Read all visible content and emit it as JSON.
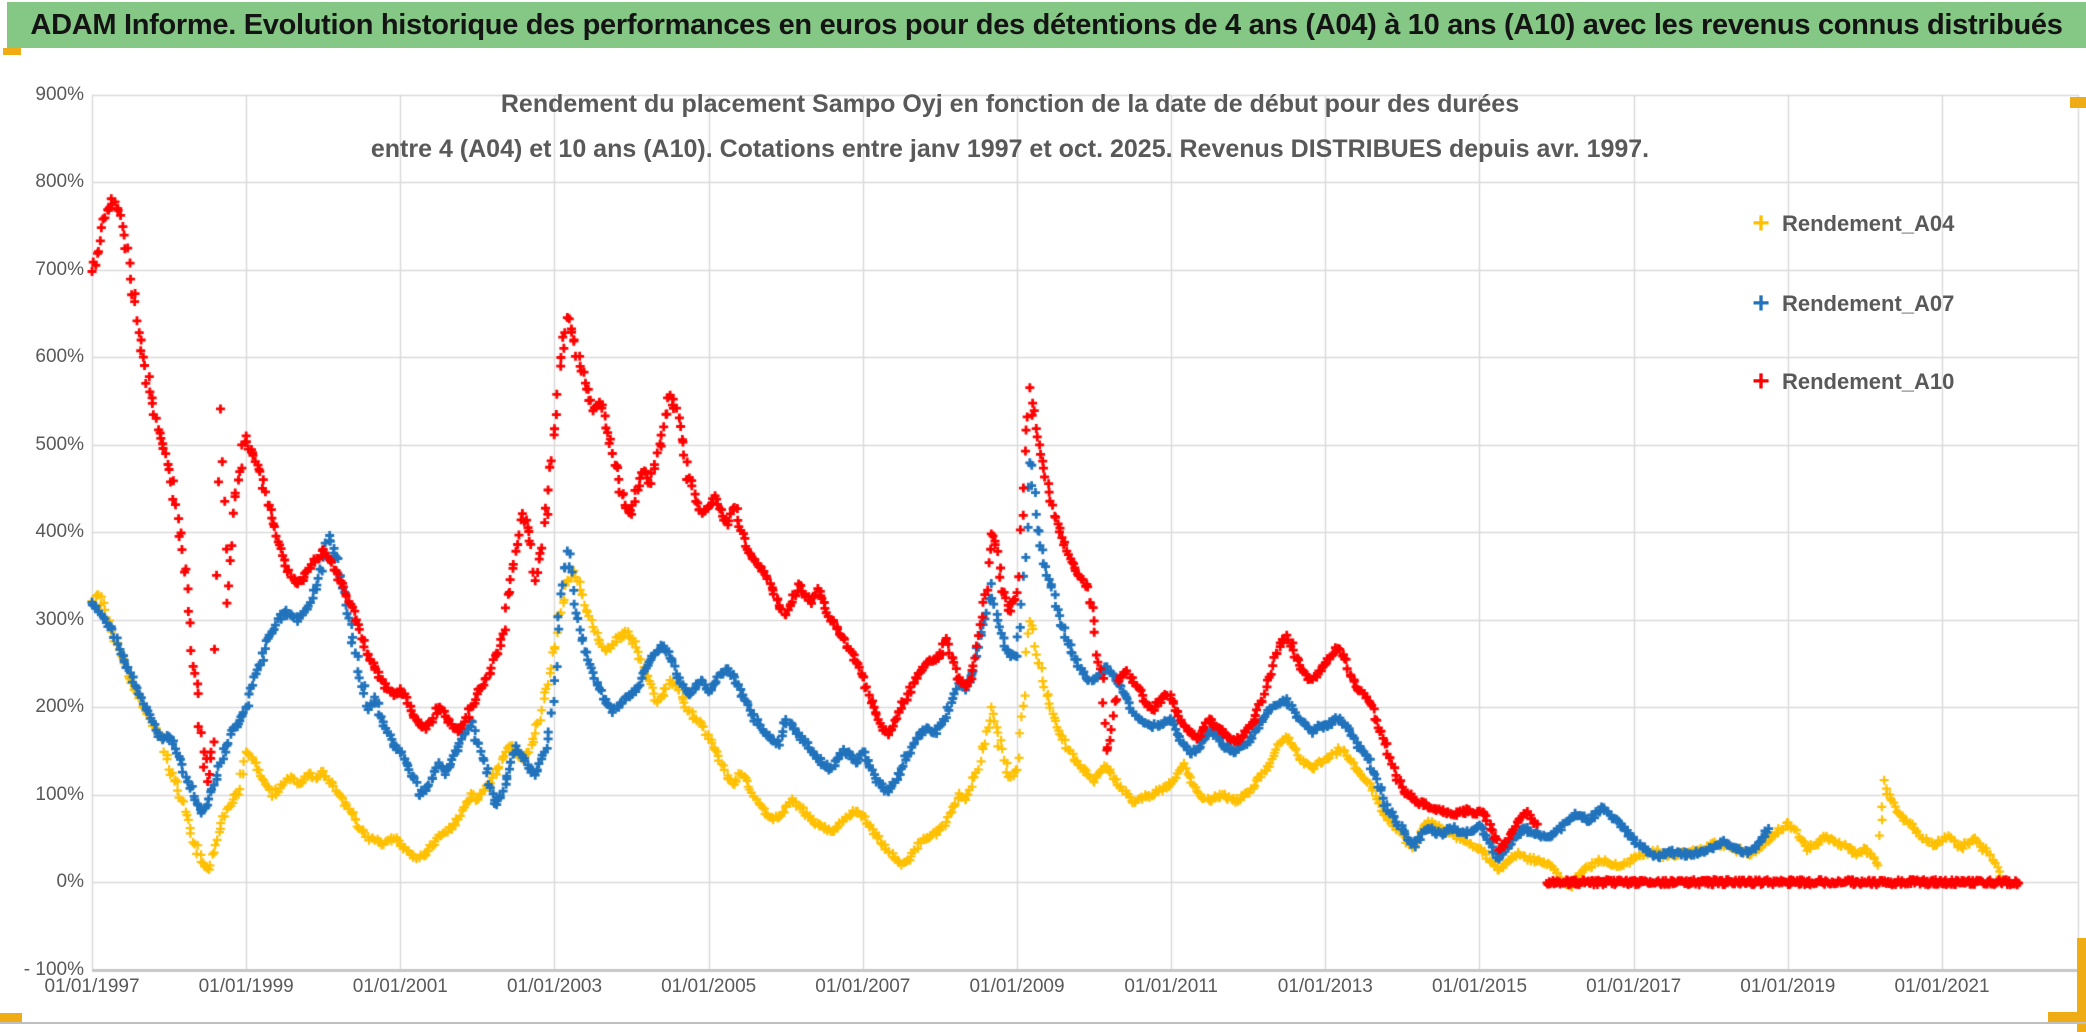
{
  "banner": {
    "text": "ADAM Informe. Evolution historique des performances en euros pour des détentions de 4 ans (A04) à 10 ans (A10) avec les revenus connus distribués"
  },
  "chart": {
    "title_line1": "Rendement du placement Sampo Oyj en fonction de la date de début pour des durées",
    "title_line2": "entre 4 (A04) et 10 ans (A10). Cotations entre janv 1997 et oct. 2025. Revenus DISTRIBUES depuis avr. 1997.",
    "colors": {
      "banner_green": "#85C785",
      "gold_accent": "#EFAC15",
      "text_gray": "#595959",
      "gridline": "#D9D9D9",
      "series_a04": "#FFC000",
      "series_a07": "#2173BC",
      "series_a10": "#FE0000"
    }
  },
  "legend": [
    {
      "label": "Rendement_A04",
      "color": "#FFC000"
    },
    {
      "label": "Rendement_A07",
      "color": "#2173BC"
    },
    {
      "label": "Rendement_A10",
      "color": "#FE0000"
    }
  ],
  "axes": {
    "y": {
      "min": -100,
      "max": 900,
      "step": 100,
      "tick_labels": [
        "900%",
        "800%",
        "700%",
        "600%",
        "500%",
        "400%",
        "300%",
        "200%",
        "100%",
        "0%",
        "- 100%"
      ],
      "tick_values": [
        900,
        800,
        700,
        600,
        500,
        400,
        300,
        200,
        100,
        0,
        -100
      ]
    },
    "x": {
      "tick_years": [
        1997,
        1999,
        2001,
        2003,
        2005,
        2007,
        2009,
        2011,
        2013,
        2015,
        2017,
        2019,
        2021
      ],
      "tick_labels": [
        "01/01/1997",
        "01/01/1999",
        "01/01/2001",
        "01/01/2003",
        "01/01/2005",
        "01/01/2007",
        "01/01/2009",
        "01/01/2011",
        "01/01/2013",
        "01/01/2015",
        "01/01/2017",
        "01/01/2019",
        "01/01/2021"
      ]
    }
  },
  "chart_data": {
    "type": "scatter",
    "marker": "plus",
    "x_unit": "date de début (année décimale, pas mensuel)",
    "y_unit": "rendement en %",
    "x_range": [
      1997.0,
      2022.8
    ],
    "y_range": [
      -100,
      900
    ],
    "grid": true,
    "legend_position": "right",
    "series": [
      {
        "name": "Rendement_A04",
        "color": "#FFC000",
        "start_year": 1997.0,
        "step_years": 0.083333,
        "values": [
          320,
          330,
          310,
          290,
          270,
          250,
          230,
          215,
          200,
          185,
          175,
          165,
          130,
          115,
          95,
          70,
          45,
          25,
          14,
          35,
          60,
          85,
          95,
          105,
          150,
          140,
          128,
          112,
          100,
          105,
          115,
          120,
          114,
          118,
          124,
          120,
          125,
          115,
          105,
          95,
          85,
          72,
          60,
          52,
          48,
          45,
          47,
          50,
          45,
          36,
          30,
          28,
          33,
          42,
          52,
          58,
          62,
          72,
          86,
          100,
          95,
          105,
          115,
          128,
          142,
          155,
          150,
          140,
          150,
          170,
          195,
          225,
          265,
          310,
          345,
          355,
          335,
          310,
          290,
          275,
          265,
          270,
          280,
          285,
          280,
          265,
          245,
          225,
          205,
          215,
          230,
          225,
          210,
          195,
          185,
          178,
          165,
          150,
          135,
          120,
          110,
          125,
          115,
          100,
          88,
          78,
          72,
          75,
          85,
          95,
          88,
          78,
          72,
          66,
          62,
          58,
          62,
          70,
          78,
          80,
          75,
          65,
          55,
          45,
          35,
          27,
          20,
          24,
          35,
          45,
          50,
          55,
          60,
          70,
          85,
          100,
          95,
          110,
          130,
          160,
          200,
          170,
          140,
          120,
          130,
          200,
          300,
          260,
          230,
          205,
          185,
          168,
          152,
          140,
          130,
          124,
          115,
          125,
          132,
          120,
          110,
          100,
          92,
          95,
          98,
          100,
          105,
          110,
          112,
          125,
          135,
          120,
          105,
          96,
          92,
          98,
          102,
          96,
          92,
          98,
          102,
          112,
          122,
          132,
          145,
          158,
          165,
          155,
          142,
          135,
          130,
          138,
          140,
          146,
          152,
          148,
          138,
          128,
          120,
          112,
          95,
          80,
          70,
          62,
          55,
          45,
          40,
          58,
          68,
          65,
          60,
          58,
          55,
          50,
          45,
          42,
          40,
          32,
          22,
          15,
          20,
          28,
          32,
          30,
          26,
          24,
          22,
          20,
          12,
          2,
          -5,
          5,
          12,
          18,
          22,
          25,
          22,
          20,
          18,
          22,
          26,
          30,
          34,
          36,
          33,
          30,
          32,
          34,
          32,
          34,
          36,
          38,
          42,
          45,
          43,
          40,
          38,
          35,
          32,
          36,
          42,
          48,
          55,
          60,
          68,
          60,
          48,
          38,
          42,
          48,
          52,
          48,
          44,
          40,
          35,
          32,
          38,
          30,
          20,
          115,
          95,
          82,
          72,
          66,
          58,
          50,
          45,
          42,
          48,
          52,
          46,
          40,
          44,
          50,
          42,
          34,
          25,
          8
        ]
      },
      {
        "name": "Rendement_A07",
        "color": "#2173BC",
        "start_year": 1997.0,
        "step_years": 0.083333,
        "values": [
          320,
          310,
          300,
          290,
          272,
          255,
          238,
          222,
          205,
          190,
          175,
          162,
          168,
          152,
          135,
          115,
          95,
          78,
          88,
          112,
          138,
          158,
          175,
          186,
          200,
          225,
          248,
          268,
          285,
          300,
          310,
          305,
          300,
          310,
          320,
          340,
          370,
          395,
          372,
          335,
          300,
          262,
          225,
          196,
          210,
          190,
          172,
          156,
          150,
          136,
          120,
          100,
          105,
          120,
          135,
          125,
          140,
          155,
          170,
          185,
          160,
          140,
          110,
          88,
          105,
          130,
          155,
          145,
          132,
          124,
          140,
          165,
          230,
          330,
          380,
          335,
          290,
          262,
          240,
          220,
          205,
          195,
          200,
          210,
          215,
          225,
          240,
          255,
          262,
          270,
          258,
          240,
          225,
          215,
          222,
          230,
          218,
          228,
          238,
          244,
          234,
          220,
          205,
          190,
          178,
          168,
          162,
          158,
          185,
          180,
          170,
          160,
          150,
          140,
          134,
          130,
          140,
          150,
          145,
          135,
          150,
          135,
          120,
          108,
          105,
          115,
          130,
          145,
          160,
          170,
          175,
          170,
          180,
          190,
          210,
          230,
          220,
          240,
          270,
          300,
          340,
          300,
          270,
          258,
          260,
          350,
          480,
          420,
          380,
          345,
          315,
          292,
          272,
          256,
          242,
          232,
          230,
          240,
          245,
          235,
          225,
          210,
          196,
          188,
          182,
          178,
          180,
          185,
          185,
          170,
          158,
          148,
          152,
          162,
          172,
          168,
          160,
          152,
          148,
          155,
          160,
          170,
          182,
          195,
          200,
          205,
          208,
          198,
          185,
          178,
          172,
          180,
          178,
          182,
          186,
          180,
          168,
          155,
          148,
          140,
          118,
          95,
          80,
          70,
          60,
          48,
          42,
          55,
          62,
          58,
          55,
          60,
          62,
          58,
          55,
          60,
          65,
          55,
          40,
          28,
          38,
          48,
          55,
          60,
          58,
          55,
          52,
          50,
          58,
          65,
          72,
          78,
          75,
          70,
          78,
          85,
          80,
          72,
          65,
          58,
          48,
          42,
          36,
          32,
          30,
          32,
          35,
          33,
          31,
          32,
          34,
          36,
          40,
          44,
          46,
          42,
          38,
          34,
          36,
          42,
          52,
          62
        ]
      },
      {
        "name": "Rendement_A10",
        "color": "#FE0000",
        "start_year": 1997.0,
        "step_years": 0.083333,
        "values": [
          700,
          720,
          760,
          780,
          770,
          740,
          690,
          640,
          600,
          560,
          530,
          500,
          470,
          430,
          380,
          310,
          240,
          170,
          115,
          160,
          540,
          320,
          420,
          470,
          510,
          490,
          470,
          445,
          415,
          390,
          370,
          350,
          340,
          350,
          360,
          370,
          380,
          370,
          355,
          340,
          320,
          300,
          280,
          260,
          245,
          232,
          222,
          215,
          220,
          210,
          192,
          180,
          175,
          185,
          200,
          190,
          180,
          172,
          182,
          200,
          215,
          225,
          240,
          260,
          285,
          330,
          380,
          420,
          400,
          345,
          380,
          450,
          520,
          600,
          645,
          620,
          590,
          565,
          540,
          550,
          520,
          490,
          460,
          430,
          420,
          450,
          470,
          455,
          490,
          520,
          555,
          540,
          505,
          460,
          435,
          420,
          430,
          440,
          425,
          410,
          430,
          400,
          382,
          370,
          360,
          350,
          335,
          315,
          305,
          320,
          340,
          330,
          320,
          335,
          320,
          300,
          290,
          280,
          265,
          250,
          235,
          215,
          195,
          178,
          170,
          185,
          200,
          215,
          230,
          240,
          250,
          255,
          260,
          280,
          255,
          232,
          222,
          242,
          280,
          330,
          400,
          380,
          332,
          310,
          330,
          450,
          565,
          520,
          480,
          445,
          415,
          395,
          375,
          358,
          346,
          336,
          298,
          245,
          152,
          192,
          235,
          242,
          230,
          220,
          206,
          196,
          206,
          215,
          210,
          196,
          180,
          170,
          165,
          175,
          186,
          178,
          170,
          164,
          160,
          166,
          175,
          186,
          205,
          230,
          255,
          272,
          282,
          265,
          246,
          236,
          230,
          240,
          250,
          260,
          268,
          255,
          236,
          220,
          215,
          205,
          185,
          164,
          144,
          124,
          108,
          100,
          95,
          90,
          87,
          85,
          83,
          80,
          78,
          80,
          82,
          80,
          80,
          75,
          60,
          38,
          45,
          55,
          70,
          80,
          72,
          65
        ],
        "zero_segment": {
          "from_year": 2015.87,
          "to_year": 2022.0,
          "value": 0
        }
      }
    ]
  }
}
